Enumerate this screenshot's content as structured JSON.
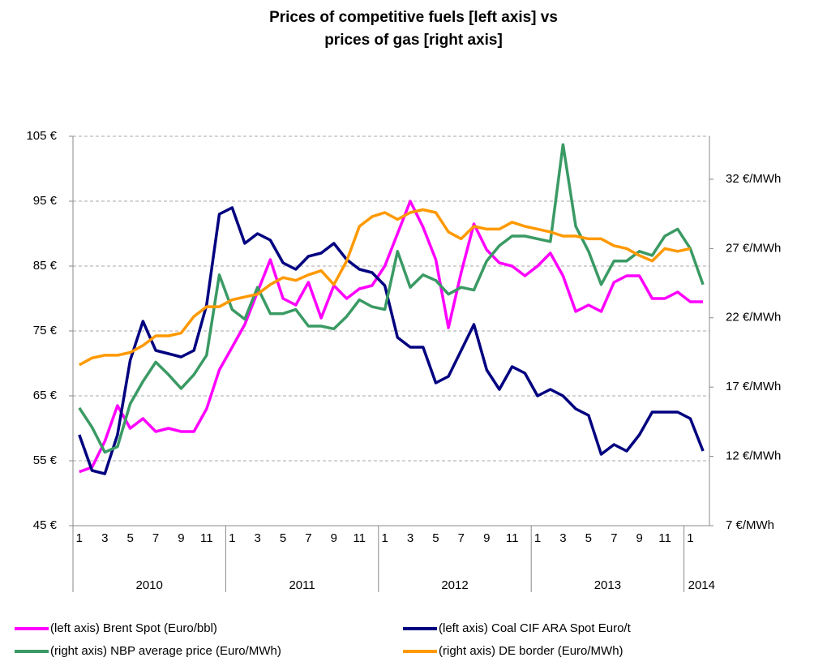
{
  "chart_data": {
    "type": "line",
    "title": [
      "Prices of competitive fuels [left axis] vs",
      "prices of gas [right axis]"
    ],
    "categories": [
      "1",
      null,
      "3",
      null,
      "5",
      null,
      "7",
      null,
      "9",
      null,
      "11",
      null,
      "1",
      null,
      "3",
      null,
      "5",
      null,
      "7",
      null,
      "9",
      null,
      "11",
      null,
      "1",
      null,
      "3",
      null,
      "5",
      null,
      "7",
      null,
      "9",
      null,
      "11",
      null,
      "1",
      null,
      "3",
      null,
      "5",
      null,
      "7",
      null,
      "9",
      null,
      "11",
      null,
      "1",
      null
    ],
    "years": [
      "2010",
      "2011",
      "2012",
      "2013",
      "2014"
    ],
    "ylim": [
      45,
      105
    ],
    "yticks": [
      {
        "value": 45,
        "label": "45 €"
      },
      {
        "value": 55,
        "label": "55 €"
      },
      {
        "value": 65,
        "label": "65 €"
      },
      {
        "value": 75,
        "label": "75 €"
      },
      {
        "value": 85,
        "label": "85 €"
      },
      {
        "value": 95,
        "label": "95 €"
      },
      {
        "value": 105,
        "label": "105 €"
      }
    ],
    "y2lim": [
      7,
      35.1
    ],
    "y2ticks": [
      {
        "value": 7,
        "label": "7 €/MWh"
      },
      {
        "value": 12,
        "label": "12 €/MWh"
      },
      {
        "value": 17,
        "label": "17 €/MWh"
      },
      {
        "value": 22,
        "label": "22 €/MWh"
      },
      {
        "value": 27,
        "label": "27 €/MWh"
      },
      {
        "value": 32,
        "label": "32 €/MWh"
      }
    ],
    "grid": true,
    "series": [
      {
        "name": "(left axis) Brent Spot (Euro/bbl)",
        "color": "#ff00ff",
        "axis": "y",
        "values": [
          53.3,
          54,
          58,
          63.5,
          60,
          61.5,
          59.5,
          60,
          59.5,
          59.5,
          63,
          69,
          72.5,
          76,
          81,
          86,
          80,
          79,
          82.5,
          77,
          82,
          80,
          81.5,
          82,
          85,
          90,
          95,
          91,
          86,
          75.5,
          84,
          91.5,
          87.5,
          85.5,
          85,
          83.5,
          85,
          87,
          83.5,
          78,
          79,
          78,
          82.5,
          83.5,
          83.5,
          80,
          80,
          81,
          79.5,
          79.5
        ]
      },
      {
        "name": "(left axis) Coal CIF ARA Spot Euro/t",
        "color": "#000080",
        "axis": "y",
        "values": [
          59,
          53.5,
          53,
          59,
          70.5,
          76.5,
          72,
          71.5,
          71,
          72,
          79,
          93,
          94,
          88.5,
          90,
          89,
          85.5,
          84.5,
          86.5,
          87,
          88.5,
          86,
          84.5,
          84,
          82,
          74,
          72.5,
          72.5,
          67,
          68,
          72,
          76,
          69,
          66,
          69.5,
          68.5,
          65,
          66,
          65,
          63,
          62,
          56,
          57.5,
          56.5,
          59,
          62.5,
          62.5,
          62.5,
          61.5,
          56.5
        ]
      },
      {
        "name": "(right axis) NBP average price (Euro/MWh)",
        "color": "#3a9a64",
        "axis": "y2",
        "values": [
          15.5,
          14.1,
          12.3,
          12.7,
          15.8,
          17.4,
          18.8,
          17.9,
          16.9,
          17.9,
          19.3,
          25.1,
          22.6,
          21.9,
          24.2,
          22.3,
          22.3,
          22.6,
          21.4,
          21.4,
          21.2,
          22.1,
          23.3,
          22.8,
          22.6,
          26.8,
          24.2,
          25.1,
          24.7,
          23.7,
          24.2,
          24,
          26.1,
          27.2,
          27.9,
          27.9,
          27.7,
          27.5,
          34.5,
          28.6,
          26.8,
          24.4,
          26.1,
          26.1,
          26.8,
          26.5,
          27.9,
          28.4,
          27,
          24.4
        ]
      },
      {
        "name": "(right axis) DE border (Euro/MWh)",
        "color": "#ff9900",
        "axis": "y2",
        "values": [
          18.6,
          19.1,
          19.3,
          19.3,
          19.5,
          20,
          20.7,
          20.7,
          20.9,
          22.1,
          22.8,
          22.8,
          23.3,
          23.5,
          23.7,
          24.4,
          24.9,
          24.7,
          25.1,
          25.4,
          24.4,
          26.1,
          28.6,
          29.3,
          29.6,
          29.1,
          29.6,
          29.8,
          29.6,
          28.2,
          27.7,
          28.6,
          28.4,
          28.4,
          28.9,
          28.6,
          28.4,
          28.2,
          27.9,
          27.9,
          27.7,
          27.7,
          27.2,
          27,
          26.5,
          26.1,
          27,
          26.8,
          27,
          null
        ]
      }
    ]
  }
}
